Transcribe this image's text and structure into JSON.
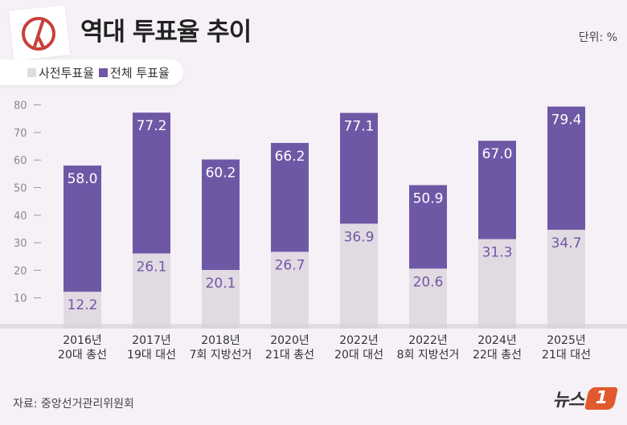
{
  "header": {
    "title": "역대 투표율 추이",
    "unit": "단위: %",
    "logo_icon": "ballot-stamp-icon"
  },
  "legend": {
    "items": [
      {
        "label": "사전투표율",
        "color": "#e2dae2"
      },
      {
        "label": "전체 투표율",
        "color": "#6e58a6"
      }
    ]
  },
  "footer": {
    "source": "자료: 중앙선거관리위원회",
    "brand_text": "뉴스",
    "brand_mark": "1"
  },
  "chart_data": {
    "type": "bar",
    "title": "역대 투표율 추이",
    "xlabel": "",
    "ylabel": "단위: %",
    "ylim": [
      0,
      80
    ],
    "yticks": [
      10,
      20,
      30,
      40,
      50,
      60,
      70,
      80
    ],
    "grid": false,
    "legend_position": "top-left",
    "categories": [
      {
        "line1": "2016년",
        "line2": "20대 총선"
      },
      {
        "line1": "2017년",
        "line2": "19대 대선"
      },
      {
        "line1": "2018년",
        "line2": "7회 지방선거"
      },
      {
        "line1": "2020년",
        "line2": "21대 총선"
      },
      {
        "line1": "2022년",
        "line2": "20대 대선"
      },
      {
        "line1": "2022년",
        "line2": "8회 지방선거"
      },
      {
        "line1": "2024년",
        "line2": "22대 총선"
      },
      {
        "line1": "2025년",
        "line2": "21대 대선"
      }
    ],
    "series": [
      {
        "name": "사전투표율",
        "color": "#e2dae2",
        "label_color": "#6e58a6",
        "values": [
          12.2,
          26.1,
          20.1,
          26.7,
          36.9,
          20.6,
          31.3,
          34.7
        ],
        "labels": [
          "12.2",
          "26.1",
          "20.1",
          "26.7",
          "36.9",
          "20.6",
          "31.3",
          "34.7"
        ]
      },
      {
        "name": "전체 투표율",
        "color": "#6e58a6",
        "label_color": "#ffffff",
        "values": [
          58.0,
          77.2,
          60.2,
          66.2,
          77.1,
          50.9,
          67.0,
          79.4
        ],
        "labels": [
          "58.0",
          "77.2",
          "60.2",
          "66.2",
          "77.1",
          "50.9",
          "67.0",
          "79.4"
        ]
      }
    ]
  }
}
